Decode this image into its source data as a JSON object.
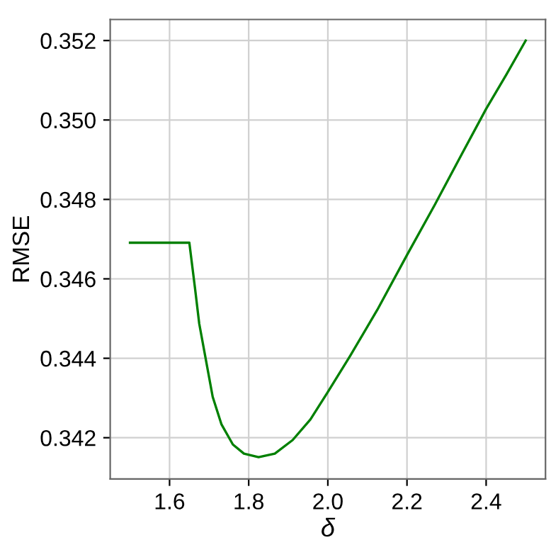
{
  "chart_data": {
    "type": "line",
    "xlabel": "δ",
    "ylabel": "RMSE",
    "x": [
      1.5,
      1.65,
      1.664,
      1.675,
      1.692,
      1.709,
      1.731,
      1.76,
      1.788,
      1.825,
      1.866,
      1.911,
      1.956,
      2.0,
      2.057,
      2.125,
      2.2,
      2.27,
      2.338,
      2.4,
      2.451,
      2.5
    ],
    "series": [
      {
        "color": "#008000",
        "values": [
          0.34691,
          0.34691,
          0.34579,
          0.34487,
          0.34395,
          0.34303,
          0.34234,
          0.34183,
          0.3416,
          0.34151,
          0.3416,
          0.34194,
          0.34246,
          0.34315,
          0.34407,
          0.34522,
          0.3466,
          0.34786,
          0.34913,
          0.35028,
          0.35114,
          0.352
        ]
      }
    ],
    "xlim": [
      1.45,
      2.55
    ],
    "ylim": [
      0.34096,
      0.35253
    ],
    "xticks": [
      1.6,
      1.8,
      {
        "value": 2.0,
        "label": "2.0"
      },
      2.2,
      2.4
    ],
    "yticks": [
      0.342,
      0.344,
      0.346,
      0.348,
      {
        "value": 0.35,
        "label": "0.350"
      },
      0.352
    ],
    "grid": true,
    "marker": "none",
    "line_style": "solid"
  }
}
